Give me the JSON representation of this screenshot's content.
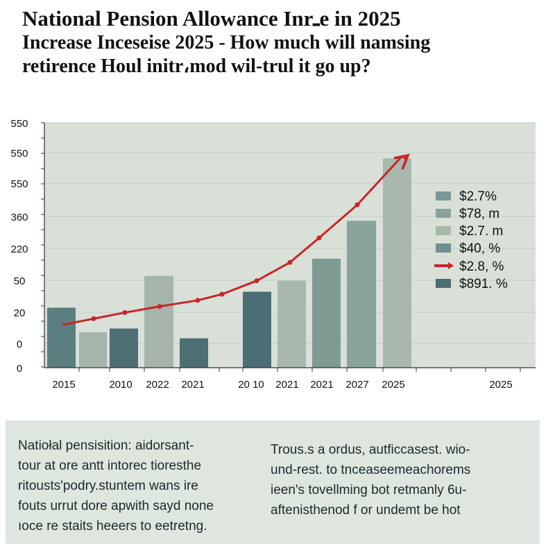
{
  "header": {
    "line1": "National Pension Allowance Inrـe in 2025",
    "line2": "Increase Inceseise 2025 - How much will namsing",
    "line3": "retirence Houl initr،mod wil-trul it go up?"
  },
  "chart_data": {
    "type": "bar",
    "y_tick_labels": [
      "0",
      "0",
      "20",
      "50",
      "220",
      "360",
      "550",
      "550",
      "550"
    ],
    "x_tick_labels": [
      "2015",
      "2010",
      "2022",
      "2021",
      "20 10",
      "2021",
      "2021",
      "2027",
      "2025",
      "2025"
    ],
    "bars": [
      {
        "value": 0.245,
        "color": "#5b7e81"
      },
      {
        "value": 0.145,
        "color": "#a5b5aa"
      },
      {
        "value": 0.16,
        "color": "#4d6f74"
      },
      {
        "value": 0.375,
        "color": "#a5b5aa"
      },
      {
        "value": 0.12,
        "color": "#4d6f74"
      },
      {
        "value": 0.31,
        "color": "#4a6e74"
      },
      {
        "value": 0.355,
        "color": "#a7b7ad"
      },
      {
        "value": 0.445,
        "color": "#7e9a93"
      },
      {
        "value": 0.6,
        "color": "#8aa49d"
      },
      {
        "value": 0.855,
        "color": "#a9b8ad"
      }
    ],
    "trend_line": {
      "color": "#c8242a",
      "values": [
        0.175,
        0.2,
        0.225,
        0.25,
        0.275,
        0.3,
        0.355,
        0.43,
        0.53,
        0.665,
        0.865
      ]
    },
    "legend": {
      "placement": "right",
      "entries": [
        {
          "label": "$2.7%",
          "color": "#7b9a97",
          "kind": "square"
        },
        {
          "label": "$78, m",
          "color": "#8aa29c",
          "kind": "square"
        },
        {
          "label": "$2.7. m",
          "color": "#a7b9ab",
          "kind": "square"
        },
        {
          "label": "$40, %",
          "color": "#6f8f8e",
          "kind": "square"
        },
        {
          "label": "$2.8, %",
          "color": "#c8242a",
          "kind": "line"
        },
        {
          "label": "$891. %",
          "color": "#4a6d73",
          "kind": "square"
        }
      ]
    },
    "plot_background": "#d8e0d8",
    "grid": true
  },
  "panel": {
    "left_text": "Natiołal pensisition: aidorsant-\ntour at ore antt intorec tioresthe\nritousts'podry.stuntem wans ire\nfouts urrut dore apwith sayd none\nıoce re staits heeers to eetretng.",
    "right_text": "Trous.s a ordus, autficcasest. wio-\nund-rest. to tnceaseemeachorems\nieen's tovellming bot retmanly 6u-\naftenisthenod f or undemt be hot"
  }
}
